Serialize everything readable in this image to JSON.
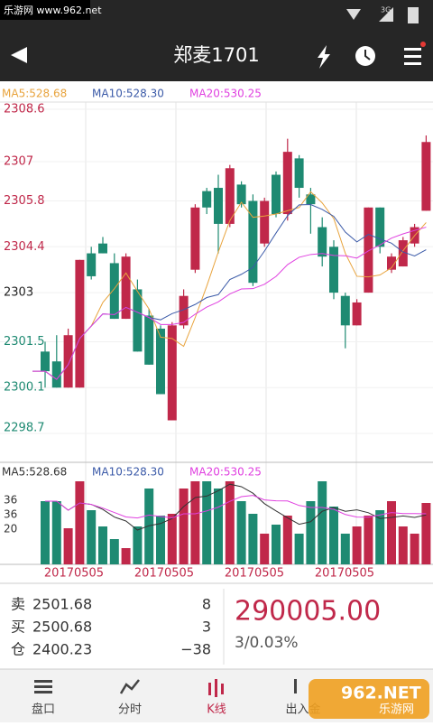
{
  "status_bar": {
    "watermark": "乐游网 www.962.net",
    "network": "3G"
  },
  "header": {
    "title": "郑麦1701"
  },
  "chart_data": {
    "type": "candlestick",
    "ma_legend": [
      "MA5:528.68",
      "MA10:528.30",
      "MA20:530.25"
    ],
    "ma_colors": [
      "#e8a33c",
      "#3b5aa8",
      "#e040e0"
    ],
    "up_color": "#c0284a",
    "down_color": "#1e8a72",
    "ylim": [
      2298.7,
      2308.6
    ],
    "yticks": [
      2308.6,
      2307.0,
      2305.8,
      2304.4,
      2303.0,
      2301.5,
      2300.1,
      2298.7
    ],
    "open": [
      2301.2,
      2300.9,
      2300.1,
      2300.1,
      2304.2,
      2304.5,
      2303.9,
      2302.2,
      2303.1,
      2302.3,
      2301.9,
      2299.1,
      2302.0,
      2303.7,
      2306.1,
      2306.2,
      2305.1,
      2306.3,
      2305.8,
      2304.5,
      2306.6,
      2305.4,
      2307.1,
      2306.0,
      2305.0,
      2304.4,
      2302.9,
      2302.0,
      2303.0,
      2305.6,
      2303.7,
      2303.8,
      2304.5,
      2305.5
    ],
    "close": [
      2300.6,
      2300.1,
      2301.7,
      2304.0,
      2303.5,
      2304.2,
      2302.2,
      2304.1,
      2301.2,
      2300.8,
      2299.9,
      2302.0,
      2302.9,
      2305.6,
      2305.6,
      2305.1,
      2306.8,
      2305.7,
      2303.3,
      2305.8,
      2305.4,
      2307.3,
      2306.2,
      2305.7,
      2304.1,
      2303.0,
      2302.0,
      2302.7,
      2305.6,
      2304.4,
      2304.1,
      2304.6,
      2305.0,
      2307.6
    ],
    "high": [
      2301.5,
      2301.7,
      2301.9,
      2304.0,
      2304.4,
      2304.7,
      2304.2,
      2304.2,
      2303.4,
      2302.5,
      2302.0,
      2302.1,
      2303.1,
      2305.7,
      2306.2,
      2306.6,
      2306.9,
      2306.4,
      2306.0,
      2305.9,
      2306.7,
      2307.7,
      2307.2,
      2306.2,
      2305.3,
      2304.6,
      2303.0,
      2302.8,
      2305.6,
      2305.6,
      2304.2,
      2304.7,
      2305.1,
      2307.8
    ],
    "low": [
      2300.1,
      2300.1,
      2300.1,
      2300.1,
      2303.4,
      2304.2,
      2302.2,
      2302.2,
      2301.2,
      2300.8,
      2299.9,
      2299.1,
      2301.9,
      2303.6,
      2305.4,
      2304.2,
      2305.0,
      2305.6,
      2303.2,
      2304.4,
      2305.3,
      2305.2,
      2305.9,
      2304.8,
      2303.8,
      2302.8,
      2301.3,
      2302.0,
      2303.0,
      2304.2,
      2303.6,
      2303.8,
      2304.4,
      2305.5
    ],
    "volume_legend": [
      "MA5:528.68",
      "MA10:528.30",
      "MA20:530.25"
    ],
    "volume_labels": [
      "36",
      "36",
      "20"
    ],
    "volume_ylim": [
      0,
      50
    ],
    "volume": [
      35,
      35,
      20,
      46,
      30,
      21,
      14,
      9,
      21,
      42,
      27,
      28,
      42,
      46,
      46,
      42,
      46,
      35,
      28,
      17,
      22,
      27,
      17,
      35,
      46,
      32,
      17,
      21,
      27,
      30,
      35,
      21,
      17,
      34
    ],
    "dates": [
      "20170505",
      "20170505",
      "20170505",
      "20170505"
    ]
  },
  "quote": {
    "rows": [
      [
        "卖",
        "2501.68",
        "8"
      ],
      [
        "买",
        "2500.68",
        "3"
      ],
      [
        "仓",
        "2400.23",
        "−38"
      ]
    ],
    "price": "290005.00",
    "change": "3/0.03%"
  },
  "tabs": [
    "盘口",
    "分时",
    "K线",
    "出入金"
  ],
  "watermark": {
    "brand": "962.NET",
    "name": "乐游网"
  }
}
